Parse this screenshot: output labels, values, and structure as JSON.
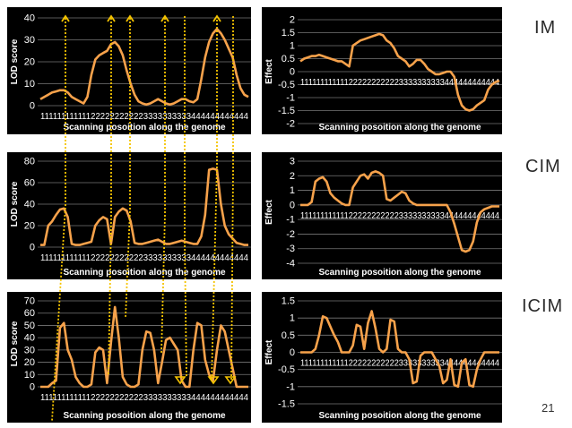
{
  "slide": {
    "page_number": "21",
    "marker_color": "#f5c400",
    "line_color": "#f7a24b",
    "panel_background": "#000000",
    "grid_color": "#777777",
    "text_color": "#ffffff"
  },
  "methods": [
    "IM",
    "CIM",
    "ICIM"
  ],
  "chart_data": [
    {
      "id": "im-lod",
      "method": "IM",
      "type": "line",
      "ylabel": "LOD score",
      "xlabel": "Scanning posoition along the genome",
      "ylim": [
        0,
        40
      ],
      "yticks": [
        "0",
        "10",
        "20",
        "30",
        "40"
      ],
      "x_tick_text": "111111111111222222222223333333333444444444444",
      "values": [
        3,
        4,
        5,
        6,
        6.5,
        7,
        7,
        6,
        4,
        3,
        2,
        1,
        4,
        14,
        21,
        23,
        24,
        25,
        28,
        29,
        27,
        23,
        16,
        10,
        5,
        2,
        1,
        0.5,
        1,
        2,
        3,
        2,
        1,
        0.5,
        1,
        2,
        3,
        3,
        2,
        1.5,
        3,
        12,
        22,
        29,
        33,
        35,
        33,
        30,
        26,
        22,
        14,
        8,
        5,
        4
      ]
    },
    {
      "id": "im-effect",
      "method": "IM",
      "type": "line",
      "ylabel": "Effect",
      "xlabel": "Scanning posoition along the genome",
      "ylim": [
        -2,
        2
      ],
      "yticks": [
        "-2",
        "-1.5",
        "-1",
        "-0.5",
        "0",
        "0.5",
        "1",
        "1.5",
        "2"
      ],
      "x_tick_text": "111111111111222222222223333333333444444444444",
      "values": [
        0.4,
        0.5,
        0.55,
        0.6,
        0.6,
        0.65,
        0.6,
        0.55,
        0.5,
        0.45,
        0.4,
        0.4,
        0.3,
        0.2,
        1.0,
        1.1,
        1.2,
        1.25,
        1.3,
        1.35,
        1.4,
        1.45,
        1.4,
        1.2,
        1.1,
        0.9,
        0.6,
        0.5,
        0.4,
        0.2,
        0.3,
        0.45,
        0.45,
        0.3,
        0.1,
        0.0,
        -0.1,
        -0.1,
        -0.05,
        0.0,
        0.0,
        -0.2,
        -0.9,
        -1.3,
        -1.45,
        -1.5,
        -1.45,
        -1.3,
        -1.2,
        -1.1,
        -0.7,
        -0.5,
        -0.4,
        -0.35
      ]
    },
    {
      "id": "cim-lod",
      "method": "CIM",
      "type": "line",
      "ylabel": "LOD score",
      "xlabel": "Scanning posoition along the genome",
      "ylim": [
        0,
        80
      ],
      "yticks": [
        "0",
        "20",
        "40",
        "60",
        "80"
      ],
      "x_tick_text": "111111111111222222222223333333333444444444444",
      "values": [
        2,
        2,
        20,
        24,
        30,
        35,
        36,
        28,
        3,
        2,
        2,
        3,
        4,
        5,
        20,
        25,
        28,
        26,
        3,
        28,
        33,
        36,
        34,
        24,
        4,
        3,
        3,
        4,
        5,
        6,
        7,
        5,
        3,
        3,
        4,
        5,
        6,
        5,
        4,
        3,
        3,
        10,
        30,
        72,
        73,
        72,
        40,
        20,
        12,
        8,
        4,
        3,
        2,
        2
      ]
    },
    {
      "id": "cim-effect",
      "method": "CIM",
      "type": "line",
      "ylabel": "Effect",
      "xlabel": "Scanning posoition along the genome",
      "ylim": [
        -4,
        3
      ],
      "yticks": [
        "-4",
        "-3",
        "-2",
        "-1",
        "0",
        "1",
        "2",
        "3"
      ],
      "x_tick_text": "111111111111222222222223333333333444444444444",
      "values": [
        0,
        0,
        0,
        0.2,
        1.6,
        1.8,
        1.9,
        1.6,
        0.8,
        0.5,
        0.3,
        0.1,
        0,
        0,
        1.2,
        1.6,
        2.0,
        2.1,
        1.8,
        2.2,
        2.3,
        2.2,
        2.0,
        0.4,
        0.3,
        0.5,
        0.7,
        0.9,
        0.8,
        0.3,
        0.1,
        0,
        0,
        0,
        0,
        0,
        0,
        0,
        0,
        0,
        -0.5,
        -1.3,
        -2.2,
        -3.1,
        -3.2,
        -3.1,
        -2.5,
        -1.2,
        -0.5,
        -0.3,
        -0.2,
        -0.1,
        -0.1,
        -0.1
      ]
    },
    {
      "id": "icim-lod",
      "method": "ICIM",
      "type": "line",
      "ylabel": "LOD score",
      "xlabel": "Scanning posoition along the genome",
      "ylim": [
        0,
        70
      ],
      "yticks": [
        "0",
        "10",
        "20",
        "30",
        "40",
        "50",
        "60",
        "70"
      ],
      "x_tick_text": "111111111111222222222223333333333444444444444",
      "values": [
        0,
        0,
        0,
        3,
        5,
        48,
        52,
        30,
        22,
        8,
        3,
        0,
        0,
        2,
        28,
        32,
        30,
        3,
        36,
        65,
        40,
        8,
        2,
        0,
        0,
        2,
        30,
        45,
        44,
        30,
        3,
        20,
        38,
        40,
        35,
        30,
        5,
        0,
        0,
        30,
        52,
        50,
        22,
        10,
        5,
        30,
        50,
        45,
        30,
        15,
        0,
        0,
        0,
        0
      ]
    },
    {
      "id": "icim-effect",
      "method": "ICIM",
      "type": "line",
      "ylabel": "Effect",
      "xlabel": "Scanning posoition along the genome",
      "ylim": [
        -1.5,
        1.5
      ],
      "yticks": [
        "-1.5",
        "-1",
        "-0.5",
        "0",
        "0.5",
        "1",
        "1.5"
      ],
      "x_tick_text": "111111111111222222222223333333333444444444444",
      "values": [
        0,
        0,
        0,
        0,
        0.1,
        0.5,
        1.05,
        1.0,
        0.75,
        0.5,
        0.3,
        0,
        0,
        0,
        0.2,
        0.8,
        0.75,
        0.1,
        0.85,
        1.2,
        0.7,
        0.1,
        0,
        0.1,
        0.95,
        0.9,
        0.1,
        0,
        0,
        -0.2,
        -0.9,
        -0.85,
        -0.1,
        0,
        0,
        0,
        -0.2,
        -0.4,
        -0.9,
        -0.8,
        -0.2,
        -0.95,
        -1.0,
        -0.3,
        -0.2,
        -0.95,
        -1.0,
        -0.5,
        -0.2,
        0,
        0,
        0,
        0,
        0
      ]
    }
  ],
  "qtl_markers": {
    "im_arrow_count": 5,
    "icim_arrow_count": 3
  }
}
